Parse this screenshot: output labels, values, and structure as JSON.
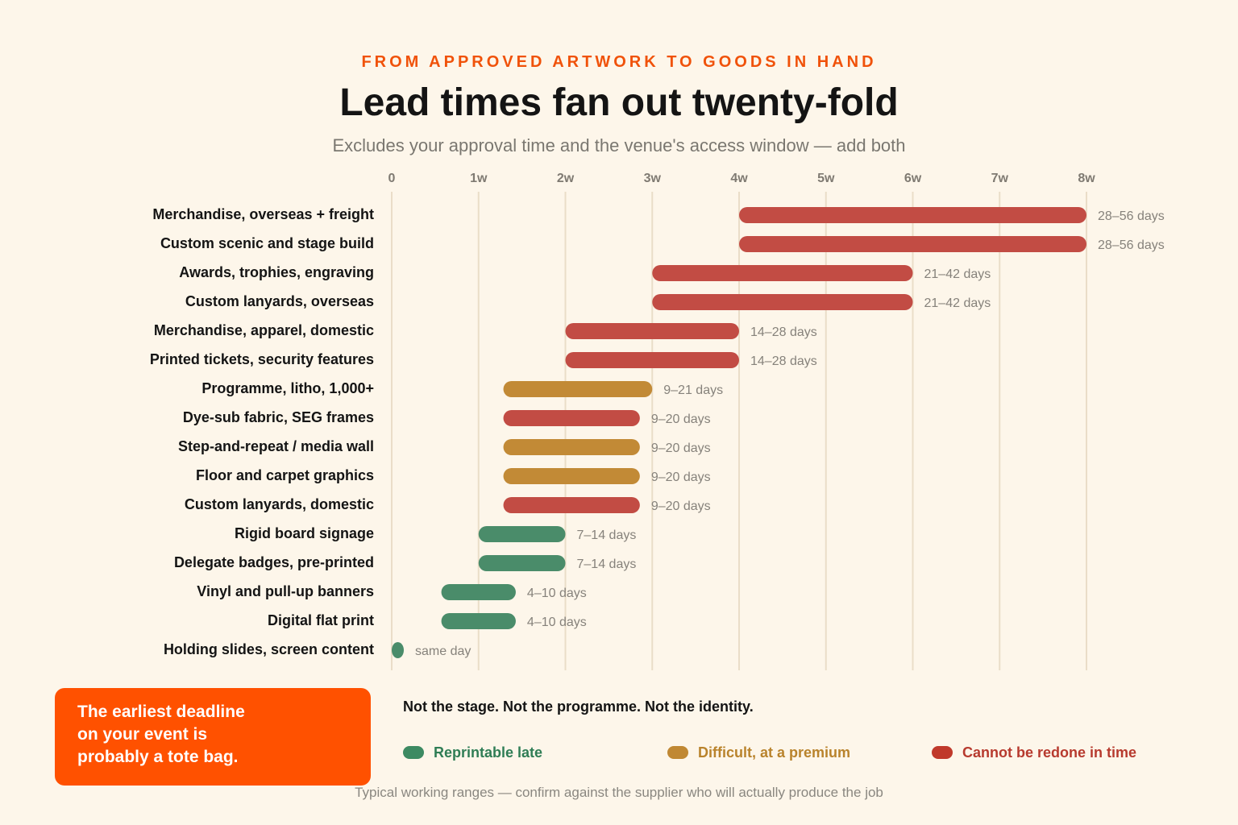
{
  "header": {
    "kicker": "FROM APPROVED ARTWORK TO GOODS IN HAND",
    "title": "Lead times fan out twenty-fold",
    "subtitle": "Excludes your approval time and the venue's access window — add both"
  },
  "callout": {
    "lines": [
      "The earliest deadline",
      "on your event is",
      "probably a tote bag."
    ]
  },
  "tagline": "Not the stage. Not the programme. Not the identity.",
  "legend": [
    {
      "label": "Reprintable late",
      "color": "#3d8a62",
      "text_color": "#2f7d55"
    },
    {
      "label": "Difficult, at a premium",
      "color": "#c08833",
      "text_color": "#b9832c"
    },
    {
      "label": "Cannot be redone in time",
      "color": "#c0392b",
      "text_color": "#b73a2e"
    }
  ],
  "footnote": "Typical working ranges — confirm against the supplier who will actually produce the job",
  "colors": {
    "late": "#4a8c6a",
    "premium": "#c28a36",
    "critical": "#c24c44",
    "grid": "#eaddc8",
    "tick": "#7f7a72",
    "label": "#141414",
    "value_label": "#86827b"
  },
  "chart_data": {
    "type": "bar",
    "orientation": "horizontal",
    "xaxis": {
      "ticks": [
        0,
        7,
        14,
        21,
        28,
        35,
        42,
        49,
        56
      ],
      "tick_labels": [
        "0",
        "1w",
        "2w",
        "3w",
        "4w",
        "5w",
        "6w",
        "7w",
        "8w"
      ],
      "range": [
        0,
        56
      ],
      "unit": "days",
      "grid": true
    },
    "bars": [
      {
        "label": "Merchandise, overseas + freight",
        "min": 28,
        "max": 56,
        "category": "critical",
        "value_label": "28–56 days"
      },
      {
        "label": "Custom scenic and stage build",
        "min": 28,
        "max": 56,
        "category": "critical",
        "value_label": "28–56 days"
      },
      {
        "label": "Awards, trophies, engraving",
        "min": 21,
        "max": 42,
        "category": "critical",
        "value_label": "21–42 days"
      },
      {
        "label": "Custom lanyards, overseas",
        "min": 21,
        "max": 42,
        "category": "critical",
        "value_label": "21–42 days"
      },
      {
        "label": "Merchandise, apparel, domestic",
        "min": 14,
        "max": 28,
        "category": "critical",
        "value_label": "14–28 days"
      },
      {
        "label": "Printed tickets, security features",
        "min": 14,
        "max": 28,
        "category": "critical",
        "value_label": "14–28 days"
      },
      {
        "label": "Programme, litho, 1,000+",
        "min": 9,
        "max": 21,
        "category": "premium",
        "value_label": "9–21 days"
      },
      {
        "label": "Dye-sub fabric, SEG frames",
        "min": 9,
        "max": 20,
        "category": "critical",
        "value_label": "9–20 days"
      },
      {
        "label": "Step-and-repeat / media wall",
        "min": 9,
        "max": 20,
        "category": "premium",
        "value_label": "9–20 days"
      },
      {
        "label": "Floor and carpet graphics",
        "min": 9,
        "max": 20,
        "category": "premium",
        "value_label": "9–20 days"
      },
      {
        "label": "Custom lanyards, domestic",
        "min": 9,
        "max": 20,
        "category": "critical",
        "value_label": "9–20 days"
      },
      {
        "label": "Rigid board signage",
        "min": 7,
        "max": 14,
        "category": "late",
        "value_label": "7–14 days"
      },
      {
        "label": "Delegate badges, pre-printed",
        "min": 7,
        "max": 14,
        "category": "late",
        "value_label": "7–14 days"
      },
      {
        "label": "Vinyl and pull-up banners",
        "min": 4,
        "max": 10,
        "category": "late",
        "value_label": "4–10 days"
      },
      {
        "label": "Digital flat print",
        "min": 4,
        "max": 10,
        "category": "late",
        "value_label": "4–10 days"
      },
      {
        "label": "Holding slides, screen content",
        "min": 0,
        "max": 0,
        "category": "late",
        "value_label": "same day"
      }
    ]
  }
}
